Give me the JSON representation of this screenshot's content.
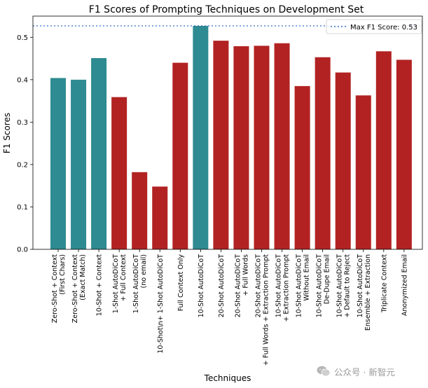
{
  "chart_data": {
    "type": "bar",
    "title": "F1 Scores of Prompting Techniques on Development Set",
    "xlabel": "Techniques",
    "ylabel": "F1 Scores",
    "ylim": [
      0,
      0.55
    ],
    "yticks": [
      "0.0",
      "0.1",
      "0.2",
      "0.3",
      "0.4",
      "0.5"
    ],
    "ytick_values": [
      0,
      0.1,
      0.2,
      0.3,
      0.4,
      0.5
    ],
    "grid": false,
    "categories": [
      [
        "Zero-Shot + Context",
        "(First Chars)"
      ],
      [
        "Zero-Shot + Context",
        "(Exact Match)"
      ],
      [
        "10-Shot + Context"
      ],
      [
        "1-Shot AutoDiCoT",
        "+ Full Context"
      ],
      [
        "1-Shot AutoDiCoT",
        "(no email)"
      ],
      [
        "10-Shot\\n+ 1-Shot AutoDiCoT"
      ],
      [
        "Full Context Only"
      ],
      [
        "10-Shot AutoDiCoT"
      ],
      [
        "20-Shot AutoDiCoT"
      ],
      [
        "20-Shot AutoDiCoT",
        "+ Full Words"
      ],
      [
        "20-Shot AutoDiCoT",
        "+ Full Words + Extraction Prompt"
      ],
      [
        "10-Shot AutoDiCoT",
        "+ Extraction Prompt"
      ],
      [
        "10-Shot AutoDiCoT",
        "Without Email"
      ],
      [
        "10-Shot AutoDiCoT",
        "De-Dupe Email"
      ],
      [
        "10-Shot AutoDiCoT",
        "+ Default to Reject"
      ],
      [
        "10-Shot AutoDiCoT",
        "Ensemble + Extraction"
      ],
      [
        "Triplicate Context"
      ],
      [
        "Anonymized Email"
      ]
    ],
    "values": [
      0.404,
      0.4,
      0.451,
      0.359,
      0.182,
      0.148,
      0.44,
      0.527,
      0.492,
      0.479,
      0.48,
      0.486,
      0.385,
      0.453,
      0.417,
      0.363,
      0.467,
      0.447
    ],
    "bar_colors": [
      "#2e8b91",
      "#2e8b91",
      "#2e8b91",
      "#b22222",
      "#b22222",
      "#b22222",
      "#b22222",
      "#2e8b91",
      "#b22222",
      "#b22222",
      "#b22222",
      "#b22222",
      "#b22222",
      "#b22222",
      "#b22222",
      "#b22222",
      "#b22222",
      "#b22222"
    ],
    "reference_line": {
      "label": "Max F1 Score: 0.53",
      "value": 0.527,
      "color": "#1f5fbf",
      "style": "dotted"
    },
    "legend_position": "top-right"
  },
  "watermark": {
    "text": "公众号 · 新智元",
    "icon": "wechat-icon"
  }
}
